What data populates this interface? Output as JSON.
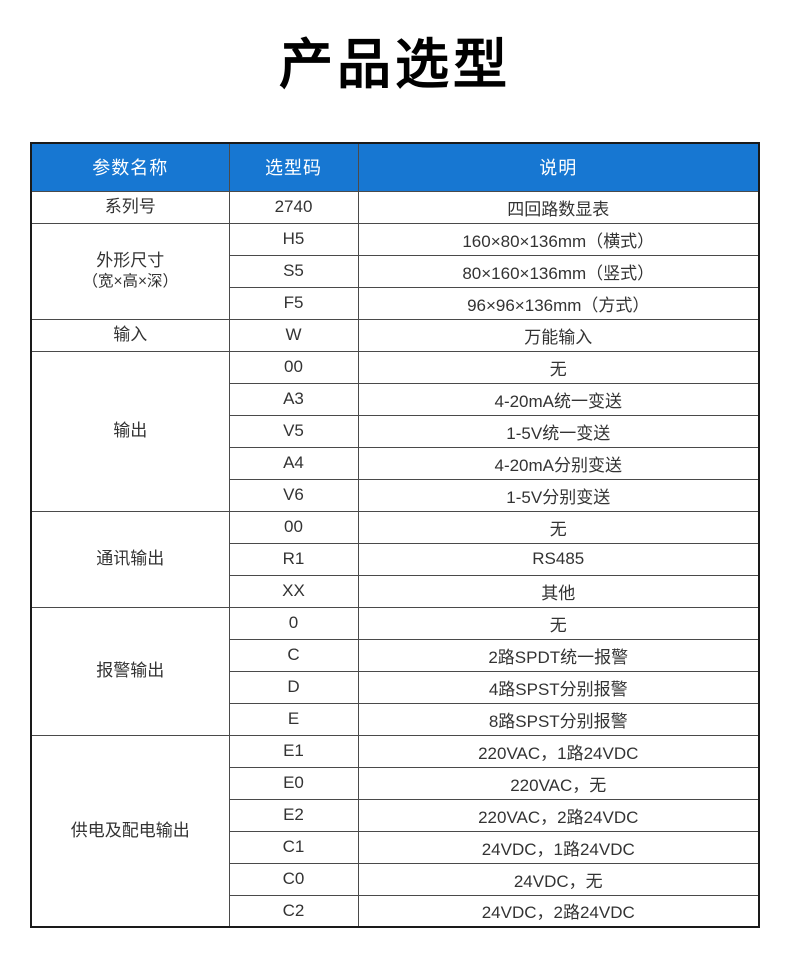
{
  "title": "产品选型",
  "colors": {
    "header_bg": "#1777d2",
    "header_text": "#ffffff",
    "grid_border": "#4a4a4a",
    "outer_border": "#1a1a1a",
    "cell_text": "#333333"
  },
  "table": {
    "headers": [
      "参数名称",
      "选型码",
      "说明"
    ],
    "groups": [
      {
        "param": "系列号",
        "param_sub": "",
        "rows": [
          {
            "code": "2740",
            "desc": "四回路数显表"
          }
        ]
      },
      {
        "param": "外形尺寸",
        "param_sub": "（宽×高×深）",
        "rows": [
          {
            "code": "H5",
            "desc": "160×80×136mm（横式）"
          },
          {
            "code": "S5",
            "desc": "80×160×136mm（竖式）"
          },
          {
            "code": "F5",
            "desc": "96×96×136mm（方式）"
          }
        ]
      },
      {
        "param": "输入",
        "param_sub": "",
        "rows": [
          {
            "code": "W",
            "desc": "万能输入"
          }
        ]
      },
      {
        "param": "输出",
        "param_sub": "",
        "rows": [
          {
            "code": "00",
            "desc": "无"
          },
          {
            "code": "A3",
            "desc": "4-20mA统一变送"
          },
          {
            "code": "V5",
            "desc": "1-5V统一变送"
          },
          {
            "code": "A4",
            "desc": "4-20mA分别变送"
          },
          {
            "code": "V6",
            "desc": "1-5V分别变送"
          }
        ]
      },
      {
        "param": "通讯输出",
        "param_sub": "",
        "rows": [
          {
            "code": "00",
            "desc": "无"
          },
          {
            "code": "R1",
            "desc": "RS485"
          },
          {
            "code": "XX",
            "desc": "其他"
          }
        ]
      },
      {
        "param": "报警输出",
        "param_sub": "",
        "rows": [
          {
            "code": "0",
            "desc": "无"
          },
          {
            "code": "C",
            "desc": "2路SPDT统一报警"
          },
          {
            "code": "D",
            "desc": "4路SPST分别报警"
          },
          {
            "code": "E",
            "desc": "8路SPST分别报警"
          }
        ]
      },
      {
        "param": "供电及配电输出",
        "param_sub": "",
        "rows": [
          {
            "code": "E1",
            "desc": "220VAC，1路24VDC"
          },
          {
            "code": "E0",
            "desc": "220VAC，无"
          },
          {
            "code": "E2",
            "desc": "220VAC，2路24VDC"
          },
          {
            "code": "C1",
            "desc": "24VDC，1路24VDC"
          },
          {
            "code": "C0",
            "desc": "24VDC，无"
          },
          {
            "code": "C2",
            "desc": "24VDC，2路24VDC"
          }
        ]
      }
    ]
  }
}
